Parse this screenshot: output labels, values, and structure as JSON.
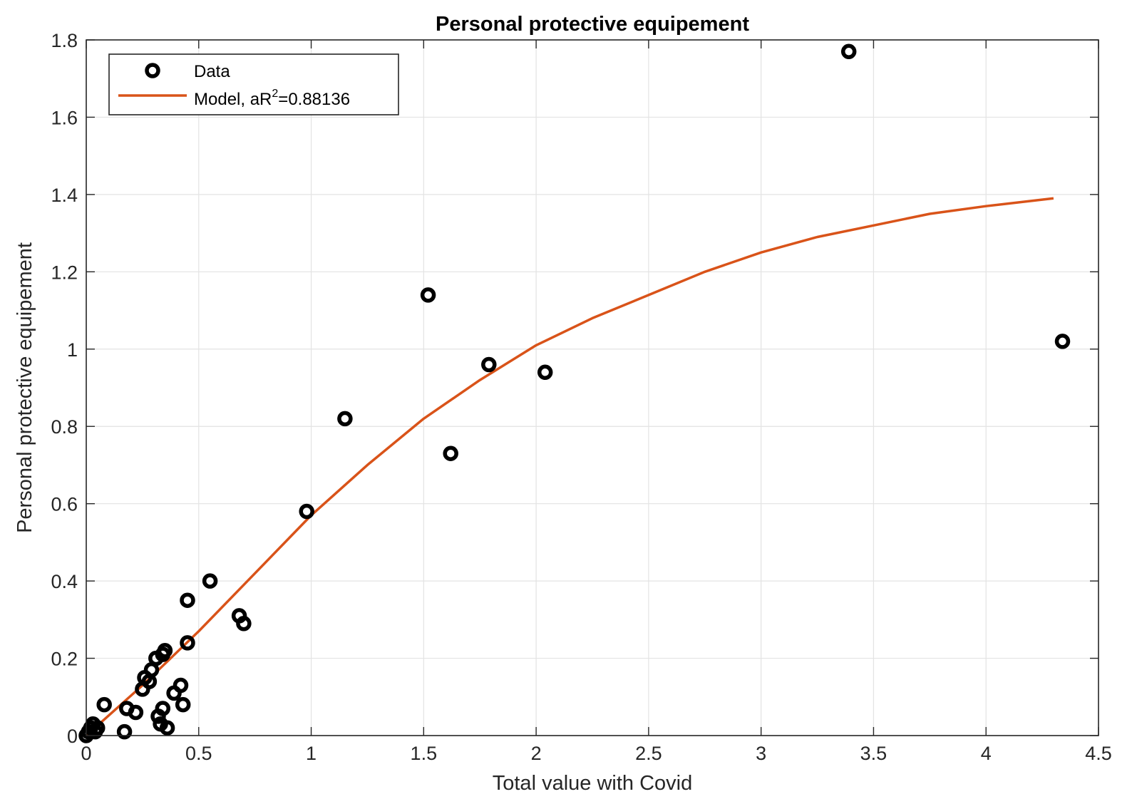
{
  "chart_data": {
    "type": "scatter",
    "title": "Personal protective equipement",
    "xlabel": "Total value with Covid",
    "ylabel": "Personal protective equipement",
    "xlim": [
      0,
      4.5
    ],
    "ylim": [
      0,
      1.8
    ],
    "xticks": [
      0,
      0.5,
      1,
      1.5,
      2,
      2.5,
      3,
      3.5,
      4,
      4.5
    ],
    "xtick_labels": [
      "0",
      "0.5",
      "1",
      "1.5",
      "2",
      "2.5",
      "3",
      "3.5",
      "4",
      "4.5"
    ],
    "yticks": [
      0,
      0.2,
      0.4,
      0.6,
      0.8,
      1,
      1.2,
      1.4,
      1.6,
      1.8
    ],
    "ytick_labels": [
      "0",
      "0.2",
      "0.4",
      "0.6",
      "0.8",
      "1",
      "1.2",
      "1.4",
      "1.6",
      "1.8"
    ],
    "grid": true,
    "legend_location": "top-left",
    "legend": {
      "data_label": "Data",
      "model_label_prefix": "Model, aR",
      "model_label_sup": "2",
      "model_label_suffix": "=0.88136"
    },
    "series": [
      {
        "name": "Data",
        "kind": "scatter",
        "marker": "o",
        "color": "#000000",
        "points": [
          [
            0.0,
            0.0
          ],
          [
            0.01,
            0.01
          ],
          [
            0.02,
            0.02
          ],
          [
            0.03,
            0.03
          ],
          [
            0.04,
            0.01
          ],
          [
            0.05,
            0.02
          ],
          [
            0.08,
            0.08
          ],
          [
            0.17,
            0.01
          ],
          [
            0.18,
            0.07
          ],
          [
            0.22,
            0.06
          ],
          [
            0.25,
            0.12
          ],
          [
            0.26,
            0.15
          ],
          [
            0.28,
            0.14
          ],
          [
            0.29,
            0.17
          ],
          [
            0.31,
            0.2
          ],
          [
            0.32,
            0.05
          ],
          [
            0.33,
            0.03
          ],
          [
            0.34,
            0.21
          ],
          [
            0.34,
            0.07
          ],
          [
            0.35,
            0.22
          ],
          [
            0.36,
            0.02
          ],
          [
            0.39,
            0.11
          ],
          [
            0.42,
            0.13
          ],
          [
            0.43,
            0.08
          ],
          [
            0.45,
            0.35
          ],
          [
            0.45,
            0.24
          ],
          [
            0.55,
            0.4
          ],
          [
            0.68,
            0.31
          ],
          [
            0.7,
            0.29
          ],
          [
            0.98,
            0.58
          ],
          [
            1.15,
            0.82
          ],
          [
            1.52,
            1.14
          ],
          [
            1.62,
            0.73
          ],
          [
            1.79,
            0.96
          ],
          [
            2.04,
            0.94
          ],
          [
            3.39,
            1.77
          ],
          [
            4.34,
            1.02
          ]
        ]
      },
      {
        "name": "Model",
        "kind": "line",
        "color": "#d95319",
        "x": [
          0.0,
          0.25,
          0.5,
          0.75,
          1.0,
          1.25,
          1.5,
          1.75,
          2.0,
          2.25,
          2.5,
          2.75,
          3.0,
          3.25,
          3.5,
          3.75,
          4.0,
          4.3
        ],
        "y": [
          0.0,
          0.13,
          0.27,
          0.42,
          0.57,
          0.7,
          0.82,
          0.92,
          1.01,
          1.08,
          1.14,
          1.2,
          1.25,
          1.29,
          1.32,
          1.35,
          1.37,
          1.39
        ]
      }
    ]
  }
}
